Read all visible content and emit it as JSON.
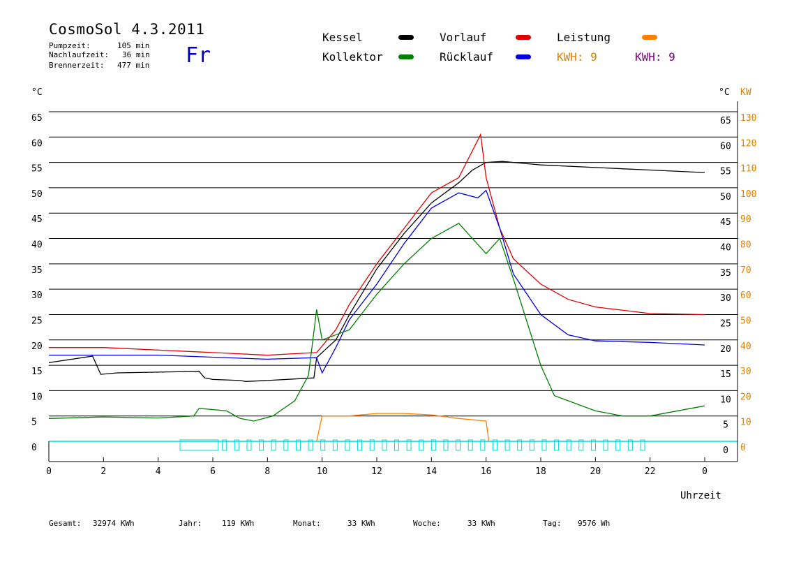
{
  "header": {
    "title": "CosmoSol 4.3.2011",
    "day": "Fr",
    "stats": [
      {
        "label": "Pumpzeit:",
        "value": "105 min"
      },
      {
        "label": "Nachlaufzeit:",
        "value": "36 min"
      },
      {
        "label": "Brennerzeit:",
        "value": "477 min"
      }
    ]
  },
  "legend": {
    "kessel": {
      "label": "Kessel",
      "color": "#000000"
    },
    "kollektor": {
      "label": "Kollektor",
      "color": "#008000"
    },
    "vorlauf": {
      "label": "Vorlauf",
      "color": "#e00000"
    },
    "ruecklauf": {
      "label": "Rücklauf",
      "color": "#0000e0"
    },
    "leistung": {
      "label": "Leistung",
      "color": "#ff8000"
    },
    "kwh1": "KWH: 9",
    "kwh2": "KWH: 9"
  },
  "footer": {
    "gesamt_label": "Gesamt:",
    "gesamt_value": "32974 KWh",
    "jahr_label": "Jahr:",
    "jahr_value": "119 KWh",
    "monat_label": "Monat:",
    "monat_value": "33 KWh",
    "woche_label": "Woche:",
    "woche_value": "33 KWh",
    "tag_label": "Tag:",
    "tag_value": "9576 Wh"
  },
  "chart_data": {
    "type": "line",
    "xlabel": "Uhrzeit",
    "ylabel_left": "°C",
    "ylabel_right": "°C",
    "ylabel_right2": "KW",
    "xlim": [
      0,
      24
    ],
    "ylim": [
      0,
      65
    ],
    "ylim_right2": [
      0,
      130
    ],
    "x_ticks": [
      "0",
      "2",
      "4",
      "6",
      "8",
      "10",
      "12",
      "14",
      "16",
      "18",
      "20",
      "22",
      "0"
    ],
    "y_ticks": [
      "0",
      "5",
      "10",
      "15",
      "20",
      "25",
      "30",
      "35",
      "40",
      "45",
      "50",
      "55",
      "60",
      "65"
    ],
    "y2_ticks": [
      "0",
      "10",
      "20",
      "30",
      "40",
      "50",
      "60",
      "70",
      "80",
      "90",
      "100",
      "110",
      "120",
      "130"
    ],
    "grid": true,
    "series": [
      {
        "name": "Kessel",
        "color": "#000000",
        "x": [
          0,
          1.6,
          1.9,
          2.5,
          5.5,
          5.7,
          6.0,
          7.0,
          7.2,
          8.0,
          9.7,
          9.8,
          10.5,
          11.0,
          12.0,
          13.0,
          14.0,
          15.0,
          15.5,
          16.0,
          16.6,
          18.0,
          20.0,
          22.0,
          24.0
        ],
        "y": [
          15.5,
          16.8,
          13.2,
          13.5,
          13.8,
          12.5,
          12.2,
          12.0,
          11.8,
          12.0,
          12.5,
          16.5,
          20.0,
          25.0,
          34.0,
          41.0,
          47.0,
          51.0,
          53.5,
          55.0,
          55.2,
          54.5,
          54.0,
          53.5,
          53.0
        ]
      },
      {
        "name": "Vorlauf",
        "color": "#e00000",
        "x": [
          0,
          2.0,
          6.0,
          8.0,
          9.8,
          10.5,
          11.0,
          12.0,
          13.0,
          14.0,
          15.0,
          15.8,
          16.0,
          16.5,
          17.0,
          18.0,
          19.0,
          20.0,
          22.0,
          24.0
        ],
        "y": [
          18.5,
          18.5,
          17.5,
          17.0,
          17.5,
          22.0,
          27.0,
          35.0,
          42.0,
          49.0,
          52.0,
          60.5,
          52.0,
          42.0,
          36.0,
          31.0,
          28.0,
          26.5,
          25.2,
          25.0
        ]
      },
      {
        "name": "Rücklauf",
        "color": "#0000e0",
        "x": [
          0,
          4.0,
          8.0,
          9.8,
          10.0,
          10.5,
          11.0,
          12.0,
          13.0,
          14.0,
          15.0,
          15.7,
          16.0,
          16.5,
          17.0,
          18.0,
          19.0,
          20.0,
          22.0,
          24.0
        ],
        "y": [
          17.0,
          17.0,
          16.2,
          16.5,
          13.5,
          18.5,
          24.0,
          31.0,
          39.0,
          46.0,
          49.0,
          48.0,
          49.5,
          42.0,
          33.0,
          25.0,
          21.0,
          19.8,
          19.5,
          19.0
        ]
      },
      {
        "name": "Kollektor",
        "color": "#008000",
        "x": [
          0,
          2.0,
          4.0,
          5.3,
          5.5,
          6.5,
          7.0,
          7.5,
          8.2,
          9.0,
          9.5,
          9.8,
          10.0,
          11.0,
          12.0,
          13.0,
          14.0,
          15.0,
          16.0,
          16.5,
          17.0,
          18.0,
          18.5,
          19.0,
          20.0,
          21.0,
          22.0,
          24.0
        ],
        "y": [
          4.5,
          4.8,
          4.6,
          5.0,
          6.5,
          6.0,
          4.5,
          4.0,
          5.0,
          8.0,
          13.0,
          26.0,
          20.0,
          22.0,
          29.0,
          35.0,
          40.0,
          43.0,
          37.0,
          40.0,
          32.0,
          15.0,
          9.0,
          8.0,
          6.0,
          5.0,
          5.0,
          7.0
        ]
      },
      {
        "name": "Leistung",
        "color": "#ff8000",
        "x": [
          9.8,
          10.0,
          11.0,
          12.0,
          13.0,
          14.0,
          15.0,
          16.0,
          16.1
        ],
        "y": [
          0,
          5.0,
          5.0,
          5.5,
          5.5,
          5.2,
          4.5,
          4.0,
          0
        ]
      }
    ]
  }
}
